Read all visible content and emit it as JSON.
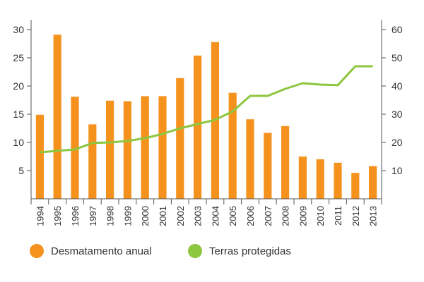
{
  "chart_data": {
    "type": "bar+line",
    "title": "",
    "xlabel": "",
    "categories": [
      "1994",
      "1995",
      "1996",
      "1997",
      "1998",
      "1999",
      "2000",
      "2001",
      "2002",
      "2003",
      "2004",
      "2005",
      "2006",
      "2007",
      "2008",
      "2009",
      "2010",
      "2011",
      "2012",
      "2013"
    ],
    "y_left": {
      "lim": [
        0,
        30
      ],
      "ticks": [
        5,
        10,
        15,
        20,
        25,
        30
      ]
    },
    "y_right": {
      "lim": [
        0,
        60
      ],
      "ticks": [
        10,
        20,
        30,
        40,
        50,
        60
      ]
    },
    "grid": false,
    "legend_position": "bottom-left",
    "series": [
      {
        "name": "Desmatamento anual",
        "type": "bar",
        "axis": "left",
        "color": "#f5921e",
        "values": [
          14.9,
          29.1,
          18.1,
          13.2,
          17.4,
          17.3,
          18.2,
          18.2,
          21.4,
          25.4,
          27.8,
          18.8,
          14.1,
          11.7,
          12.9,
          7.5,
          7.0,
          6.4,
          4.6,
          5.8
        ]
      },
      {
        "name": "Terras protegidas",
        "type": "line",
        "axis": "right",
        "color": "#8dc63f",
        "values": [
          16.5,
          17.0,
          17.5,
          19.8,
          20.0,
          20.5,
          21.5,
          23.0,
          25.0,
          26.5,
          28.0,
          31.0,
          36.5,
          36.5,
          39.0,
          41.0,
          40.5,
          40.3,
          47.0,
          47.0
        ]
      }
    ]
  }
}
